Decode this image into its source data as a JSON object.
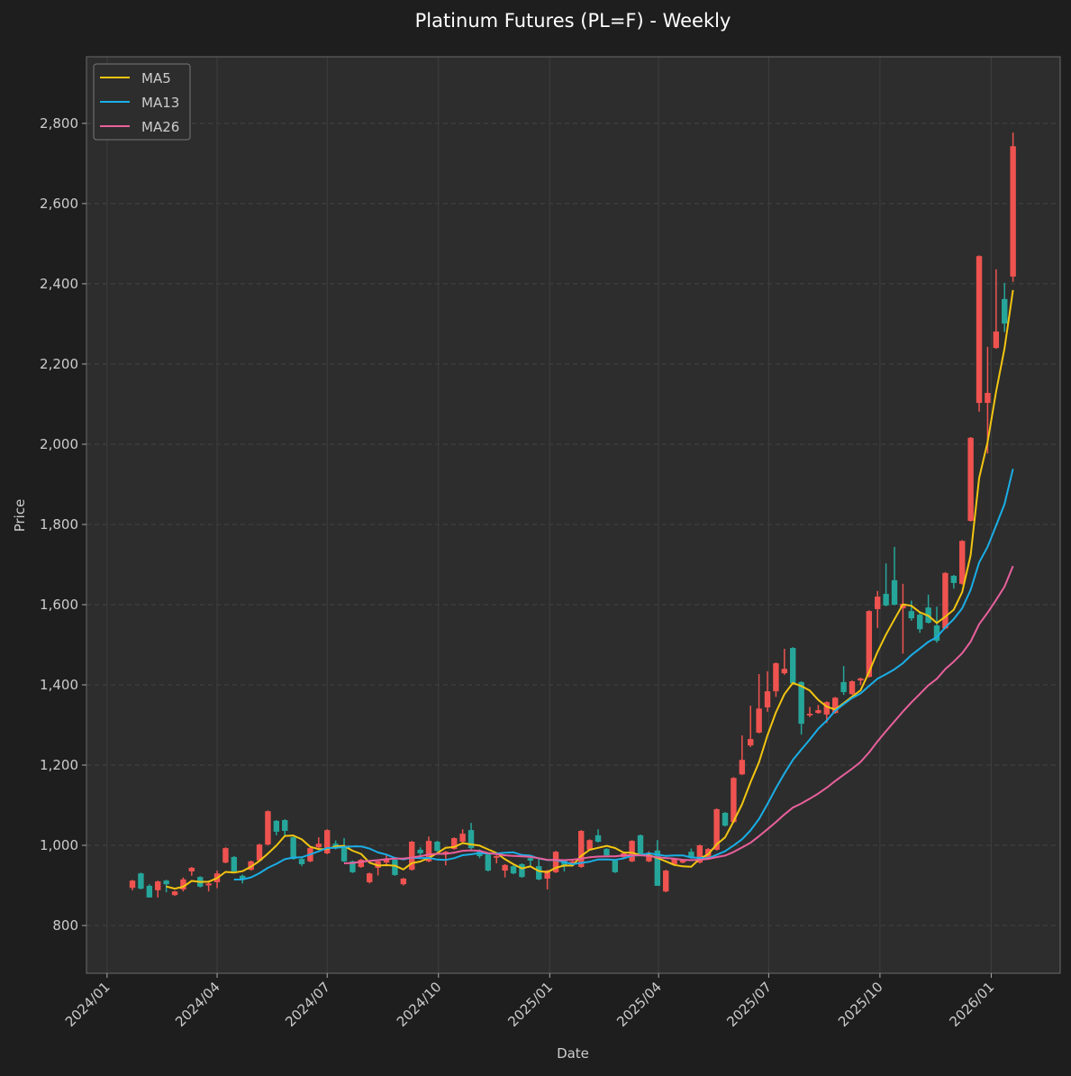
{
  "chart_data": {
    "type": "candlestick",
    "title": "Platinum Futures (PL=F) - Weekly",
    "xlabel": "Date",
    "ylabel": "Price",
    "ylim": [
      681,
      2966
    ],
    "xlim": [
      "2023-12-15",
      "2026-02-27"
    ],
    "grid": true,
    "legend_position": "top-left",
    "start_date": "2024-01-22",
    "interval_days": 7,
    "y_ticks": [
      800,
      1000,
      1200,
      1400,
      1600,
      1800,
      2000,
      2200,
      2400,
      2600,
      2800
    ],
    "y_tick_labels": [
      "800",
      "1,000",
      "1,200",
      "1,400",
      "1,600",
      "1,800",
      "2,000",
      "2,200",
      "2,400",
      "2,600",
      "2,800"
    ],
    "x_ticks": [
      "2024-01-01",
      "2024-04-01",
      "2024-07-01",
      "2024-10-01",
      "2025-01-01",
      "2025-04-01",
      "2025-07-01",
      "2025-10-01",
      "2026-01-01"
    ],
    "x_tick_labels": [
      "2024/01",
      "2024/04",
      "2024/07",
      "2024/10",
      "2025/01",
      "2025/04",
      "2025/07",
      "2025/10",
      "2026/01"
    ],
    "ohlc_fields": [
      "open",
      "high",
      "low",
      "close"
    ],
    "ohlc": [
      [
        894,
        914,
        888,
        912
      ],
      [
        930,
        932,
        890,
        892
      ],
      [
        899,
        903,
        870,
        870
      ],
      [
        888,
        912,
        870,
        910
      ],
      [
        912,
        914,
        883,
        903
      ],
      [
        876,
        887,
        874,
        885
      ],
      [
        890,
        920,
        885,
        915
      ],
      [
        935,
        946,
        924,
        944
      ],
      [
        921,
        923,
        895,
        897
      ],
      [
        900,
        912,
        885,
        905
      ],
      [
        908,
        937,
        893,
        930
      ],
      [
        957,
        995,
        955,
        993
      ],
      [
        971,
        973,
        933,
        935
      ],
      [
        924,
        927,
        905,
        915
      ],
      [
        939,
        962,
        937,
        960
      ],
      [
        962,
        1004,
        960,
        1002
      ],
      [
        1002,
        1087,
        1000,
        1085
      ],
      [
        1061,
        1063,
        1025,
        1034
      ],
      [
        1063,
        1065,
        1025,
        1036
      ],
      [
        1020,
        1022,
        964,
        966
      ],
      [
        966,
        968,
        948,
        953
      ],
      [
        960,
        995,
        958,
        993
      ],
      [
        995,
        1020,
        990,
        1004
      ],
      [
        980,
        1040,
        978,
        1038
      ],
      [
        1004,
        1012,
        990,
        998
      ],
      [
        995,
        1018,
        958,
        960
      ],
      [
        960,
        962,
        931,
        933
      ],
      [
        946,
        966,
        944,
        964
      ],
      [
        908,
        932,
        905,
        930
      ],
      [
        944,
        962,
        925,
        960
      ],
      [
        957,
        975,
        948,
        966
      ],
      [
        964,
        966,
        924,
        926
      ],
      [
        903,
        919,
        900,
        917
      ],
      [
        939,
        1011,
        937,
        1009
      ],
      [
        989,
        995,
        970,
        980
      ],
      [
        960,
        1022,
        958,
        1011
      ],
      [
        1009,
        1011,
        984,
        986
      ],
      [
        980,
        986,
        950,
        984
      ],
      [
        991,
        1020,
        989,
        1018
      ],
      [
        1009,
        1040,
        1007,
        1029
      ],
      [
        1038,
        1056,
        990,
        993
      ],
      [
        984,
        990,
        968,
        973
      ],
      [
        977,
        979,
        935,
        937
      ],
      [
        969,
        975,
        955,
        973
      ],
      [
        937,
        953,
        920,
        951
      ],
      [
        948,
        950,
        928,
        930
      ],
      [
        953,
        955,
        919,
        921
      ],
      [
        968,
        972,
        945,
        962
      ],
      [
        948,
        965,
        913,
        915
      ],
      [
        917,
        939,
        890,
        937
      ],
      [
        933,
        986,
        931,
        984
      ],
      [
        962,
        964,
        935,
        951
      ],
      [
        952,
        962,
        950,
        960
      ],
      [
        946,
        1038,
        944,
        1036
      ],
      [
        989,
        1015,
        987,
        1013
      ],
      [
        1025,
        1040,
        1007,
        1009
      ],
      [
        991,
        993,
        973,
        975
      ],
      [
        962,
        964,
        931,
        933
      ],
      [
        971,
        982,
        969,
        980
      ],
      [
        960,
        1013,
        958,
        1011
      ],
      [
        1025,
        1027,
        976,
        978
      ],
      [
        960,
        985,
        958,
        975
      ],
      [
        987,
        1013,
        899,
        899
      ],
      [
        885,
        939,
        883,
        937
      ],
      [
        953,
        968,
        951,
        966
      ],
      [
        957,
        964,
        955,
        962
      ],
      [
        984,
        992,
        967,
        969
      ],
      [
        957,
        1002,
        955,
        1000
      ],
      [
        969,
        993,
        967,
        991
      ],
      [
        989,
        1092,
        987,
        1090
      ],
      [
        1081,
        1083,
        1047,
        1049
      ],
      [
        1058,
        1170,
        1056,
        1168
      ],
      [
        1177,
        1274,
        1175,
        1213
      ],
      [
        1249,
        1348,
        1245,
        1265
      ],
      [
        1281,
        1427,
        1279,
        1341
      ],
      [
        1344,
        1434,
        1333,
        1384
      ],
      [
        1384,
        1456,
        1370,
        1454
      ],
      [
        1429,
        1490,
        1425,
        1440
      ],
      [
        1492,
        1494,
        1402,
        1404
      ],
      [
        1407,
        1409,
        1276,
        1303
      ],
      [
        1324,
        1345,
        1320,
        1328
      ],
      [
        1330,
        1350,
        1328,
        1337
      ],
      [
        1326,
        1359,
        1305,
        1357
      ],
      [
        1330,
        1370,
        1328,
        1368
      ],
      [
        1407,
        1447,
        1375,
        1382
      ],
      [
        1377,
        1411,
        1375,
        1409
      ],
      [
        1411,
        1418,
        1400,
        1416
      ],
      [
        1420,
        1586,
        1418,
        1584
      ],
      [
        1589,
        1634,
        1542,
        1620
      ],
      [
        1627,
        1703,
        1596,
        1598
      ],
      [
        1661,
        1744,
        1598,
        1600
      ],
      [
        1591,
        1652,
        1478,
        1602
      ],
      [
        1584,
        1610,
        1560,
        1566
      ],
      [
        1575,
        1580,
        1530,
        1539
      ],
      [
        1593,
        1625,
        1553,
        1555
      ],
      [
        1548,
        1595,
        1505,
        1510
      ],
      [
        1541,
        1681,
        1539,
        1679
      ],
      [
        1672,
        1674,
        1640,
        1654
      ],
      [
        1652,
        1761,
        1650,
        1759
      ],
      [
        1809,
        2018,
        1807,
        2016
      ],
      [
        2103,
        2471,
        2081,
        2469
      ],
      [
        2103,
        2243,
        1977,
        2128
      ],
      [
        2240,
        2436,
        2238,
        2281
      ],
      [
        2362,
        2402,
        2280,
        2301
      ],
      [
        2418,
        2777,
        2405,
        2743
      ]
    ],
    "moving_averages": [
      {
        "name": "MA5",
        "window": 5,
        "color": "#f2c511"
      },
      {
        "name": "MA13",
        "window": 13,
        "color": "#1aaee6"
      },
      {
        "name": "MA26",
        "window": 26,
        "color": "#e8609c"
      }
    ],
    "up_color": "#ef5350",
    "down_color": "#26a69a"
  }
}
